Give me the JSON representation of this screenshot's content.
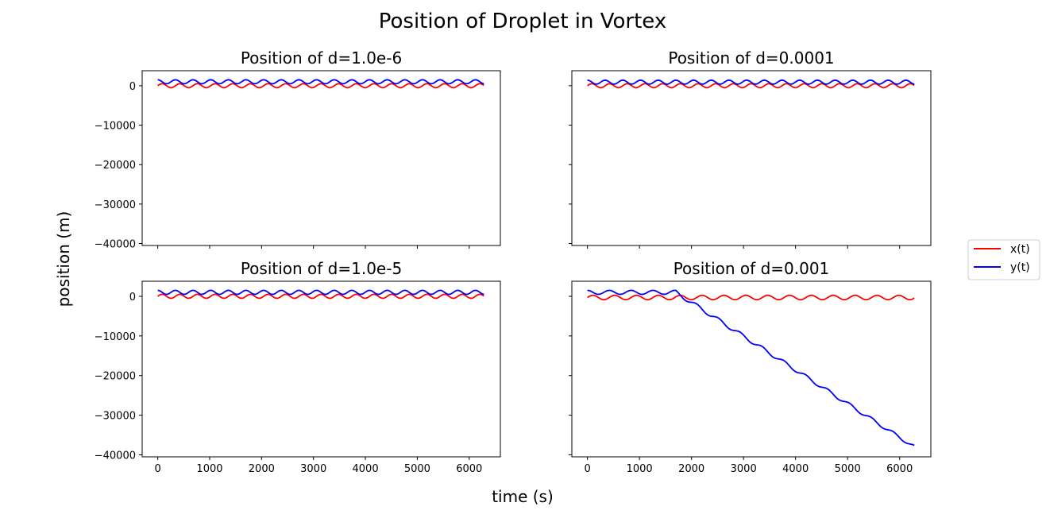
{
  "figure": {
    "title": "Position of Droplet in Vortex",
    "xlabel": "time (s)",
    "ylabel": "position (m)"
  },
  "legend": {
    "placement": "right",
    "entries": [
      {
        "label": "x(t)",
        "color": "#ff0000"
      },
      {
        "label": "y(t)",
        "color": "#0000ff"
      }
    ]
  },
  "chart_data": [
    {
      "type": "line",
      "title": "Position of d=1.0e-6",
      "xlim": [
        -300,
        6600
      ],
      "ylim": [
        -40500,
        3800
      ],
      "xticks": [
        0,
        1000,
        2000,
        3000,
        4000,
        5000,
        6000
      ],
      "yticks": [
        0,
        -10000,
        -20000,
        -30000,
        -40000
      ],
      "show_xticklabels": false,
      "show_yticklabels": true,
      "period": 340,
      "series": [
        {
          "name": "x(t)",
          "color": "#ff0000",
          "x_range": [
            0,
            6283
          ],
          "offset": 0,
          "amplitude": 500,
          "phase": "sin",
          "drift_start": null,
          "drift_end_y": null
        },
        {
          "name": "y(t)",
          "color": "#0000ff",
          "x_range": [
            0,
            6283
          ],
          "offset": 1000,
          "amplitude": 500,
          "phase": "cos",
          "drift_start": null,
          "drift_end_y": null
        }
      ]
    },
    {
      "type": "line",
      "title": "Position of d=0.0001",
      "xlim": [
        -300,
        6600
      ],
      "ylim": [
        -40500,
        3800
      ],
      "xticks": [
        0,
        1000,
        2000,
        3000,
        4000,
        5000,
        6000
      ],
      "yticks": [
        0,
        -10000,
        -20000,
        -30000,
        -40000
      ],
      "show_xticklabels": false,
      "show_yticklabels": false,
      "period": 340,
      "series": [
        {
          "name": "x(t)",
          "color": "#ff0000",
          "x_range": [
            0,
            6283
          ],
          "offset": 0,
          "amplitude": 500,
          "phase": "sin",
          "drift_start": null,
          "drift_end_y": null
        },
        {
          "name": "y(t)",
          "color": "#0000ff",
          "x_range": [
            0,
            6283
          ],
          "offset": 900,
          "amplitude": 500,
          "phase": "cos",
          "drift_start": null,
          "drift_end_y": null
        }
      ]
    },
    {
      "type": "line",
      "title": "Position of d=1.0e-5",
      "xlim": [
        -300,
        6600
      ],
      "ylim": [
        -40500,
        3800
      ],
      "xticks": [
        0,
        1000,
        2000,
        3000,
        4000,
        5000,
        6000
      ],
      "yticks": [
        0,
        -10000,
        -20000,
        -30000,
        -40000
      ],
      "show_xticklabels": true,
      "show_yticklabels": true,
      "period": 340,
      "series": [
        {
          "name": "x(t)",
          "color": "#ff0000",
          "x_range": [
            0,
            6283
          ],
          "offset": 0,
          "amplitude": 500,
          "phase": "sin",
          "drift_start": null,
          "drift_end_y": null
        },
        {
          "name": "y(t)",
          "color": "#0000ff",
          "x_range": [
            0,
            6283
          ],
          "offset": 1000,
          "amplitude": 500,
          "phase": "cos",
          "drift_start": null,
          "drift_end_y": null
        }
      ]
    },
    {
      "type": "line",
      "title": "Position of d=0.001",
      "xlim": [
        -300,
        6600
      ],
      "ylim": [
        -40500,
        3800
      ],
      "xticks": [
        0,
        1000,
        2000,
        3000,
        4000,
        5000,
        6000
      ],
      "yticks": [
        0,
        -10000,
        -20000,
        -30000,
        -40000
      ],
      "show_xticklabels": true,
      "show_yticklabels": false,
      "period": 420,
      "series": [
        {
          "name": "x(t)",
          "color": "#ff0000",
          "x_range": [
            0,
            6283
          ],
          "offset": -300,
          "amplitude": 550,
          "phase": "sin",
          "drift_start": null,
          "drift_end_y": null
        },
        {
          "name": "y(t)",
          "color": "#0000ff",
          "x_range": [
            0,
            6283
          ],
          "offset": 1000,
          "amplitude": 500,
          "phase": "cos",
          "drift_start": 1700,
          "drift_end_y": -38000
        }
      ]
    }
  ]
}
